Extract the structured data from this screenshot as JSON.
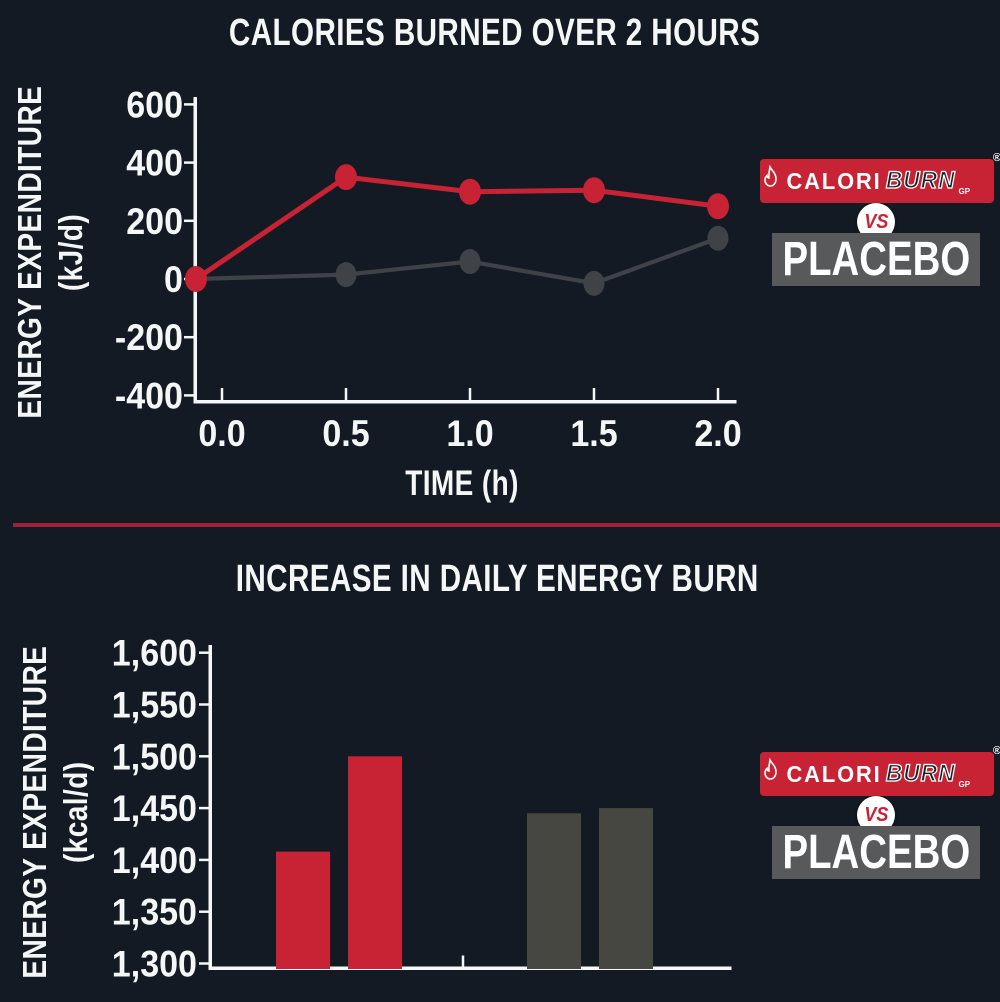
{
  "page": {
    "background": "#131a23",
    "axis_color": "#f5f6f7",
    "divider_color": "#a02036"
  },
  "badge": {
    "calori": "CALORI",
    "burn": "BURN",
    "gp": "GP",
    "registered": "®",
    "vs": "VS",
    "placebo": "PLACEBO",
    "brand_red": "#c82334",
    "placebo_gray": "#58595b"
  },
  "chart_data": [
    {
      "type": "line",
      "title": "CALORIES BURNED OVER 2 HOURS",
      "xlabel": "TIME (h)",
      "ylabel": "ENERGY EXPENDITURE (kJ/d)",
      "ylabel_lines": [
        "ENERGY EXPENDITURE",
        "(kJ/d)"
      ],
      "x": [
        0.0,
        0.5,
        1.0,
        1.5,
        2.0
      ],
      "x_tick_labels": [
        "0.0",
        "0.5",
        "1.0",
        "1.5",
        "2.0"
      ],
      "ylim": [
        -400,
        600
      ],
      "y_ticks": [
        600,
        400,
        200,
        0,
        -200,
        -400
      ],
      "grid": false,
      "legend_position": "right",
      "series": [
        {
          "name": "Placebo",
          "color": "#3f4347",
          "values": [
            0,
            15,
            60,
            -15,
            140
          ]
        },
        {
          "name": "CaloriBurn",
          "color": "#c82334",
          "values": [
            0,
            350,
            300,
            305,
            250
          ]
        }
      ]
    },
    {
      "type": "bar",
      "title": "INCREASE IN DAILY ENERGY BURN",
      "xlabel": "",
      "ylabel": "ENERGY EXPENDITURE (kcal/d)",
      "ylabel_lines": [
        "ENERGY EXPENDITURE",
        "(kcal/d)"
      ],
      "ylim": [
        1300,
        1600
      ],
      "y_ticks": [
        1600,
        1550,
        1500,
        1450,
        1400,
        1350,
        1300
      ],
      "y_tick_labels": [
        "1,600",
        "1,550",
        "1,500",
        "1,450",
        "1,400",
        "1,350",
        "1,300"
      ],
      "grid": false,
      "legend_position": "right",
      "series": [
        {
          "name": "CaloriBurn",
          "color": "#c82334",
          "values": [
            1408,
            1500
          ]
        },
        {
          "name": "Placebo",
          "color": "#474742",
          "values": [
            1445,
            1450
          ]
        }
      ]
    }
  ]
}
